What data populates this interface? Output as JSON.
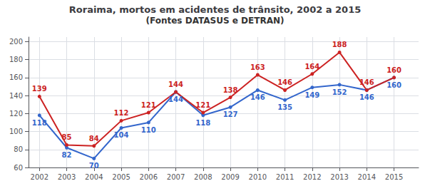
{
  "chart_data": {
    "type": "line",
    "title": "Roraima, mortos em acidentes de trânsito, 2002 a 2015",
    "subtitle": "(Fontes DATASUS e DETRAN)",
    "x": [
      2002,
      2003,
      2004,
      2005,
      2006,
      2007,
      2008,
      2009,
      2010,
      2011,
      2012,
      2013,
      2014,
      2015
    ],
    "series": [
      {
        "color": "#3366cc",
        "values": [
          118,
          82,
          70,
          104,
          110,
          144,
          118,
          127,
          146,
          135,
          149,
          152,
          146,
          160
        ]
      },
      {
        "color": "#cc2222",
        "values": [
          139,
          85,
          84,
          112,
          121,
          144,
          121,
          138,
          163,
          146,
          164,
          188,
          146,
          160
        ]
      }
    ],
    "xlim": [
      2001.6,
      2015.9
    ],
    "xticks": [
      2002,
      2003,
      2004,
      2005,
      2006,
      2007,
      2008,
      2009,
      2010,
      2011,
      2012,
      2013,
      2014,
      2015
    ],
    "ylim": [
      60,
      205
    ],
    "yticks": [
      60,
      80,
      100,
      120,
      140,
      160,
      180,
      200
    ],
    "grid": true,
    "data_labels": true,
    "marker": "circle"
  }
}
